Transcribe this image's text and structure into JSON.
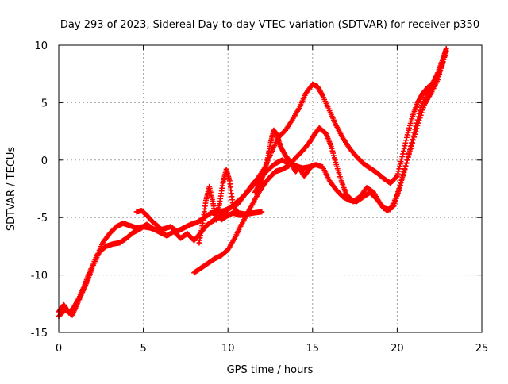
{
  "chart_data": {
    "type": "scatter",
    "title": "Day 293 of 2023, Sidereal Day-to-day VTEC variation (SDTVAR) for receiver p350",
    "xlabel": "GPS time / hours",
    "ylabel": "SDTVAR / TECUs",
    "xlim": [
      0,
      25
    ],
    "ylim": [
      -15,
      10
    ],
    "xticks": [
      0,
      5,
      10,
      15,
      20,
      25
    ],
    "yticks": [
      -15,
      -10,
      -5,
      0,
      5,
      10
    ],
    "xtick_labels": [
      "0",
      "5",
      "10",
      "15",
      "20",
      "25"
    ],
    "ytick_labels": [
      "-15",
      "-10",
      "-5",
      "0",
      "5",
      "10"
    ],
    "grid": true,
    "marker": "plus",
    "color": "#ff0000",
    "series": [
      {
        "points": [
          [
            0.0,
            -13.2
          ],
          [
            0.3,
            -12.6
          ],
          [
            0.6,
            -13.3
          ],
          [
            0.9,
            -12.8
          ],
          [
            1.2,
            -12.0
          ],
          [
            1.5,
            -11.0
          ],
          [
            1.8,
            -9.8
          ],
          [
            2.2,
            -8.5
          ],
          [
            2.6,
            -7.2
          ],
          [
            3.0,
            -6.4
          ],
          [
            3.4,
            -5.8
          ],
          [
            3.8,
            -5.5
          ],
          [
            4.2,
            -5.7
          ],
          [
            4.6,
            -5.9
          ],
          [
            5.0,
            -5.8
          ],
          [
            5.4,
            -5.9
          ],
          [
            5.8,
            -6.1
          ],
          [
            6.2,
            -6.0
          ],
          [
            6.6,
            -5.8
          ],
          [
            7.0,
            -6.2
          ],
          [
            7.4,
            -5.9
          ],
          [
            7.8,
            -5.6
          ],
          [
            8.2,
            -5.4
          ],
          [
            8.6,
            -5.0
          ],
          [
            9.0,
            -4.6
          ],
          [
            9.4,
            -4.5
          ],
          [
            9.8,
            -4.4
          ],
          [
            10.2,
            -4.1
          ],
          [
            10.6,
            -3.8
          ],
          [
            11.0,
            -3.0
          ],
          [
            11.4,
            -2.2
          ],
          [
            11.8,
            -1.5
          ],
          [
            12.2,
            -0.6
          ],
          [
            12.6,
            0.8
          ],
          [
            13.0,
            2.0
          ],
          [
            13.4,
            2.6
          ],
          [
            13.8,
            3.5
          ],
          [
            14.2,
            4.5
          ],
          [
            14.6,
            5.8
          ],
          [
            15.0,
            6.6
          ],
          [
            15.3,
            6.4
          ],
          [
            15.6,
            5.6
          ],
          [
            16.0,
            4.3
          ],
          [
            16.4,
            3.0
          ],
          [
            16.8,
            1.9
          ],
          [
            17.2,
            1.0
          ],
          [
            17.6,
            0.3
          ],
          [
            18.0,
            -0.3
          ],
          [
            18.4,
            -0.7
          ],
          [
            18.8,
            -1.1
          ],
          [
            19.2,
            -1.6
          ],
          [
            19.6,
            -2.0
          ],
          [
            20.0,
            -1.4
          ],
          [
            20.3,
            0.3
          ],
          [
            20.6,
            2.2
          ],
          [
            20.9,
            3.8
          ],
          [
            21.2,
            5.0
          ],
          [
            21.5,
            5.8
          ],
          [
            21.8,
            6.3
          ],
          [
            22.1,
            6.7
          ],
          [
            22.4,
            7.6
          ],
          [
            22.7,
            8.8
          ],
          [
            22.9,
            9.7
          ]
        ]
      },
      {
        "points": [
          [
            0.0,
            -13.6
          ],
          [
            0.4,
            -13.0
          ],
          [
            0.8,
            -13.5
          ],
          [
            1.1,
            -12.5
          ],
          [
            1.4,
            -11.5
          ],
          [
            1.7,
            -10.5
          ],
          [
            2.0,
            -9.3
          ],
          [
            2.4,
            -8.0
          ],
          [
            2.8,
            -7.5
          ],
          [
            3.2,
            -7.3
          ],
          [
            3.6,
            -7.2
          ],
          [
            4.0,
            -6.8
          ],
          [
            4.4,
            -6.3
          ],
          [
            4.8,
            -6.0
          ],
          [
            5.2,
            -5.6
          ],
          [
            5.6,
            -6.0
          ],
          [
            6.0,
            -6.3
          ],
          [
            6.4,
            -6.6
          ],
          [
            6.8,
            -6.2
          ],
          [
            7.2,
            -6.8
          ],
          [
            7.6,
            -6.4
          ],
          [
            8.0,
            -7.0
          ],
          [
            8.4,
            -6.3
          ],
          [
            8.8,
            -5.6
          ],
          [
            9.2,
            -5.2
          ],
          [
            9.6,
            -4.8
          ],
          [
            10.0,
            -4.3
          ],
          [
            10.4,
            -3.8
          ],
          [
            10.8,
            -3.3
          ],
          [
            11.2,
            -2.7
          ],
          [
            11.6,
            -2.0
          ],
          [
            12.0,
            -1.4
          ],
          [
            12.4,
            -0.8
          ],
          [
            12.8,
            -0.3
          ],
          [
            13.2,
            0.0
          ],
          [
            13.6,
            -0.3
          ],
          [
            14.0,
            -0.5
          ],
          [
            14.4,
            -0.7
          ],
          [
            14.8,
            -0.6
          ],
          [
            15.2,
            -0.4
          ],
          [
            15.6,
            -0.6
          ],
          [
            16.0,
            -1.8
          ],
          [
            16.4,
            -2.6
          ],
          [
            16.8,
            -3.2
          ],
          [
            17.2,
            -3.5
          ],
          [
            17.6,
            -3.6
          ],
          [
            18.0,
            -3.2
          ],
          [
            18.4,
            -2.8
          ],
          [
            18.8,
            -3.4
          ],
          [
            19.2,
            -4.2
          ],
          [
            19.6,
            -4.3
          ],
          [
            20.0,
            -3.0
          ],
          [
            20.4,
            -1.0
          ],
          [
            20.8,
            1.0
          ],
          [
            21.2,
            3.0
          ],
          [
            21.6,
            4.8
          ],
          [
            22.0,
            5.8
          ],
          [
            22.4,
            7.0
          ],
          [
            22.8,
            9.0
          ]
        ]
      },
      {
        "points": [
          [
            8.0,
            -9.8
          ],
          [
            8.4,
            -9.4
          ],
          [
            8.8,
            -9.0
          ],
          [
            9.2,
            -8.6
          ],
          [
            9.6,
            -8.3
          ],
          [
            10.0,
            -7.8
          ],
          [
            10.4,
            -6.8
          ],
          [
            10.8,
            -5.6
          ],
          [
            11.2,
            -4.5
          ],
          [
            11.6,
            -3.4
          ],
          [
            12.0,
            -2.4
          ],
          [
            12.4,
            -1.6
          ],
          [
            12.8,
            -1.0
          ],
          [
            13.2,
            -0.8
          ],
          [
            13.6,
            -0.5
          ],
          [
            14.0,
            0.2
          ],
          [
            14.4,
            0.8
          ],
          [
            14.8,
            1.5
          ],
          [
            15.1,
            2.2
          ],
          [
            15.4,
            2.8
          ],
          [
            15.8,
            2.3
          ],
          [
            16.1,
            1.2
          ],
          [
            16.4,
            -0.4
          ],
          [
            16.7,
            -1.8
          ],
          [
            17.0,
            -3.0
          ],
          [
            17.4,
            -3.6
          ],
          [
            17.8,
            -3.2
          ],
          [
            18.2,
            -2.4
          ],
          [
            18.6,
            -2.8
          ],
          [
            19.0,
            -3.8
          ],
          [
            19.4,
            -4.4
          ],
          [
            19.8,
            -4.0
          ],
          [
            20.2,
            -2.2
          ],
          [
            20.6,
            0.0
          ],
          [
            21.0,
            2.4
          ],
          [
            21.4,
            4.6
          ],
          [
            21.8,
            6.0
          ],
          [
            22.2,
            6.6
          ],
          [
            22.6,
            8.0
          ],
          [
            22.9,
            9.5
          ]
        ]
      },
      {
        "points": [
          [
            8.3,
            -7.2
          ],
          [
            8.5,
            -5.5
          ],
          [
            8.7,
            -3.5
          ],
          [
            8.9,
            -2.3
          ],
          [
            9.1,
            -3.6
          ],
          [
            9.3,
            -5.2
          ],
          [
            9.5,
            -3.8
          ],
          [
            9.7,
            -2.0
          ],
          [
            9.9,
            -0.8
          ],
          [
            10.1,
            -1.8
          ],
          [
            10.3,
            -4.0
          ],
          [
            10.6,
            -4.6
          ],
          [
            11.0,
            -4.7
          ],
          [
            11.4,
            -4.5
          ]
        ]
      },
      {
        "points": [
          [
            11.6,
            -2.8
          ],
          [
            11.9,
            -2.0
          ],
          [
            12.1,
            -1.2
          ],
          [
            12.3,
            -0.2
          ],
          [
            12.5,
            1.4
          ],
          [
            12.7,
            2.6
          ],
          [
            12.9,
            2.2
          ],
          [
            13.1,
            1.2
          ],
          [
            13.4,
            0.4
          ],
          [
            13.7,
            -0.2
          ],
          [
            14.0,
            -1.0
          ],
          [
            14.2,
            -0.6
          ],
          [
            14.5,
            -1.4
          ],
          [
            14.8,
            -0.8
          ]
        ]
      },
      {
        "points": [
          [
            9.6,
            -5.2
          ],
          [
            9.9,
            -4.9
          ],
          [
            10.3,
            -4.6
          ],
          [
            10.7,
            -4.8
          ],
          [
            11.1,
            -4.7
          ],
          [
            11.5,
            -4.6
          ],
          [
            12.0,
            -4.5
          ]
        ]
      },
      {
        "points": [
          [
            4.6,
            -4.5
          ],
          [
            4.9,
            -4.4
          ],
          [
            5.2,
            -4.8
          ],
          [
            5.5,
            -5.3
          ],
          [
            5.9,
            -5.8
          ]
        ]
      }
    ]
  }
}
